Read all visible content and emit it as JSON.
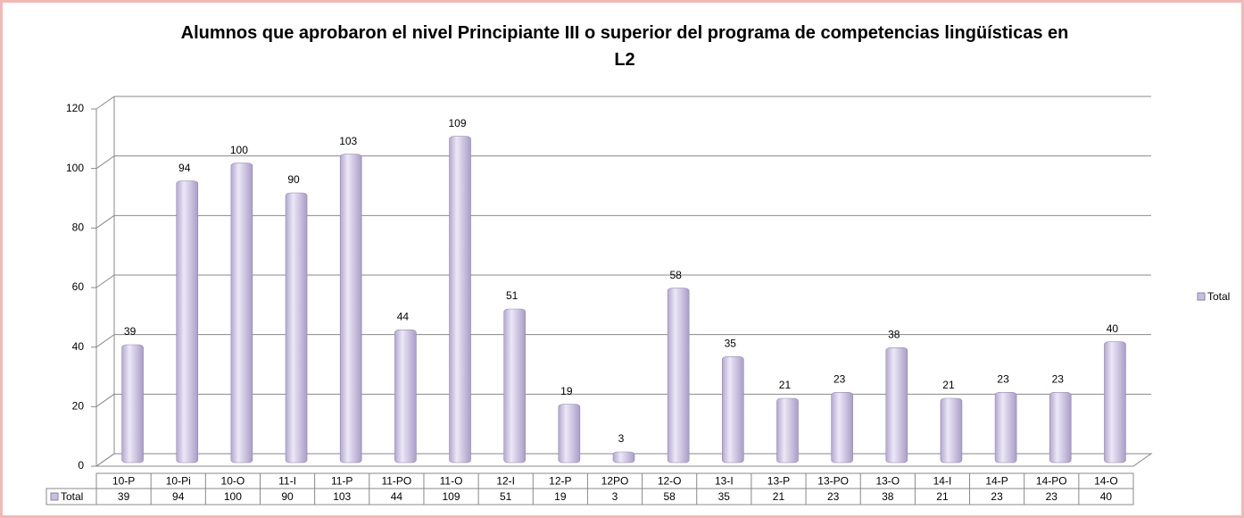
{
  "chart_data": {
    "type": "bar",
    "title": "Alumnos que aprobaron el nivel Principiante III o superior del programa de competencias lingüísticas en L2",
    "categories": [
      "10-P",
      "10-Pi",
      "10-O",
      "11-I",
      "11-P",
      "11-PO",
      "11-O",
      "12-I",
      "12-P",
      "12PO",
      "12-O",
      "13-I",
      "13-P",
      "13-PO",
      "13-O",
      "14-I",
      "14-P",
      "14-PO",
      "14-O"
    ],
    "series": [
      {
        "name": "Total",
        "color": "#c9bfe0",
        "values": [
          39,
          94,
          100,
          90,
          103,
          44,
          109,
          51,
          19,
          3,
          58,
          35,
          21,
          23,
          38,
          21,
          23,
          23,
          40
        ]
      }
    ],
    "ylim": [
      0,
      120
    ],
    "yticks": [
      0,
      20,
      40,
      60,
      80,
      100,
      120
    ],
    "grid": true,
    "legend": "right"
  }
}
